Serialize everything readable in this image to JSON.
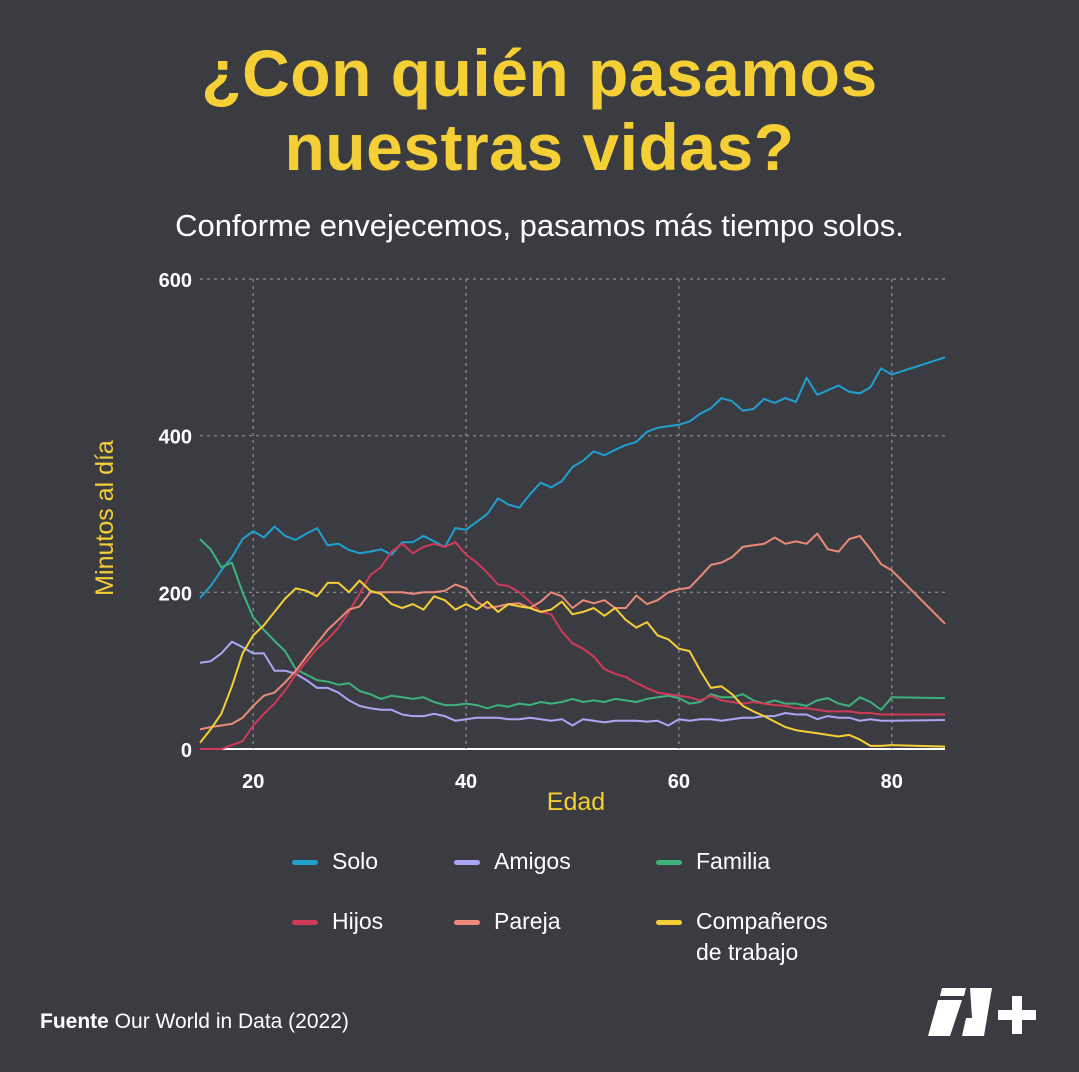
{
  "header": {
    "title_line1": "¿Con quién pasamos",
    "title_line2": "nuestras vidas?",
    "subtitle": "Conforme envejecemos, pasamos más tiempo solos."
  },
  "footer": {
    "source_label": "Fuente",
    "source_text": " Our World in Data (2022)"
  },
  "colors": {
    "background": "#3b3c42",
    "accent": "#f5cf36"
  },
  "chart_data": {
    "type": "line",
    "xlabel": "Edad",
    "ylabel": "Minutos al día",
    "xlim": [
      15,
      85
    ],
    "ylim": [
      0,
      600
    ],
    "xticks": [
      20,
      40,
      60,
      80
    ],
    "yticks": [
      0,
      200,
      400,
      600
    ],
    "grid": true,
    "legend_position": "bottom",
    "x": [
      15,
      16,
      17,
      18,
      19,
      20,
      21,
      22,
      23,
      24,
      25,
      26,
      27,
      28,
      29,
      30,
      31,
      32,
      33,
      34,
      35,
      36,
      37,
      38,
      39,
      40,
      41,
      42,
      43,
      44,
      45,
      46,
      47,
      48,
      49,
      50,
      51,
      52,
      53,
      54,
      55,
      56,
      57,
      58,
      59,
      60,
      61,
      62,
      63,
      64,
      65,
      66,
      67,
      68,
      69,
      70,
      71,
      72,
      73,
      74,
      75,
      76,
      77,
      78,
      79,
      80,
      85
    ],
    "series": [
      {
        "name": "Solo",
        "color": "#1fa0cf",
        "values": [
          193,
          208,
          228,
          245,
          268,
          278,
          270,
          284,
          272,
          267,
          275,
          282,
          260,
          262,
          254,
          250,
          252,
          255,
          248,
          264,
          264,
          272,
          265,
          258,
          282,
          280,
          290,
          300,
          320,
          312,
          308,
          325,
          340,
          334,
          342,
          360,
          368,
          380,
          375,
          382,
          388,
          392,
          405,
          410,
          412,
          414,
          418,
          428,
          435,
          448,
          444,
          432,
          434,
          447,
          442,
          448,
          443,
          474,
          452,
          458,
          464,
          456,
          454,
          462,
          486,
          478,
          500
        ]
      },
      {
        "name": "Amigos",
        "color": "#a9a6f4",
        "values": [
          110,
          112,
          122,
          137,
          130,
          122,
          122,
          100,
          100,
          96,
          88,
          78,
          78,
          72,
          62,
          55,
          52,
          50,
          50,
          44,
          42,
          42,
          45,
          42,
          36,
          38,
          40,
          40,
          40,
          38,
          38,
          40,
          38,
          36,
          38,
          30,
          38,
          36,
          34,
          36,
          36,
          36,
          35,
          36,
          30,
          38,
          36,
          38,
          38,
          36,
          38,
          40,
          40,
          42,
          42,
          46,
          44,
          44,
          38,
          42,
          40,
          40,
          36,
          38,
          36,
          36,
          37
        ]
      },
      {
        "name": "Familia",
        "color": "#3cb37c",
        "values": [
          268,
          255,
          232,
          238,
          200,
          168,
          152,
          138,
          125,
          102,
          95,
          88,
          86,
          82,
          84,
          74,
          70,
          64,
          68,
          66,
          64,
          66,
          60,
          56,
          56,
          58,
          56,
          52,
          56,
          54,
          58,
          56,
          60,
          58,
          60,
          64,
          60,
          62,
          60,
          64,
          62,
          60,
          64,
          66,
          68,
          65,
          58,
          60,
          70,
          66,
          66,
          70,
          62,
          58,
          62,
          58,
          58,
          55,
          62,
          65,
          58,
          55,
          66,
          60,
          50,
          66,
          65
        ]
      },
      {
        "name": "Hijos",
        "color": "#cf3a58",
        "values": [
          0,
          0,
          0,
          5,
          10,
          30,
          45,
          58,
          75,
          95,
          112,
          128,
          140,
          155,
          175,
          198,
          222,
          232,
          252,
          262,
          250,
          258,
          262,
          258,
          264,
          248,
          238,
          225,
          210,
          208,
          200,
          188,
          175,
          172,
          150,
          135,
          128,
          118,
          102,
          96,
          92,
          84,
          78,
          72,
          70,
          68,
          66,
          62,
          68,
          62,
          60,
          58,
          60,
          58,
          56,
          55,
          52,
          52,
          50,
          48,
          48,
          48,
          46,
          46,
          44,
          44,
          44
        ]
      },
      {
        "name": "Pareja",
        "color": "#eb8a79",
        "values": [
          25,
          28,
          30,
          32,
          40,
          55,
          68,
          72,
          85,
          100,
          118,
          135,
          152,
          165,
          178,
          182,
          200,
          200,
          200,
          200,
          198,
          200,
          200,
          202,
          210,
          205,
          188,
          180,
          182,
          185,
          186,
          180,
          188,
          200,
          195,
          180,
          190,
          186,
          190,
          180,
          180,
          196,
          185,
          190,
          200,
          204,
          206,
          220,
          235,
          238,
          245,
          258,
          260,
          262,
          270,
          262,
          265,
          262,
          275,
          255,
          252,
          268,
          272,
          255,
          236,
          228,
          160
        ]
      },
      {
        "name": "Compañeros\nde trabajo",
        "color": "#f5cf36",
        "values": [
          8,
          25,
          45,
          80,
          122,
          145,
          158,
          175,
          192,
          205,
          202,
          195,
          212,
          212,
          200,
          215,
          202,
          198,
          185,
          180,
          185,
          178,
          195,
          190,
          178,
          185,
          178,
          188,
          175,
          185,
          182,
          180,
          175,
          178,
          188,
          172,
          175,
          180,
          170,
          180,
          165,
          155,
          162,
          145,
          140,
          128,
          125,
          100,
          78,
          80,
          70,
          55,
          48,
          42,
          35,
          28,
          24,
          22,
          20,
          18,
          16,
          18,
          12,
          4,
          4,
          5,
          3
        ]
      }
    ]
  }
}
